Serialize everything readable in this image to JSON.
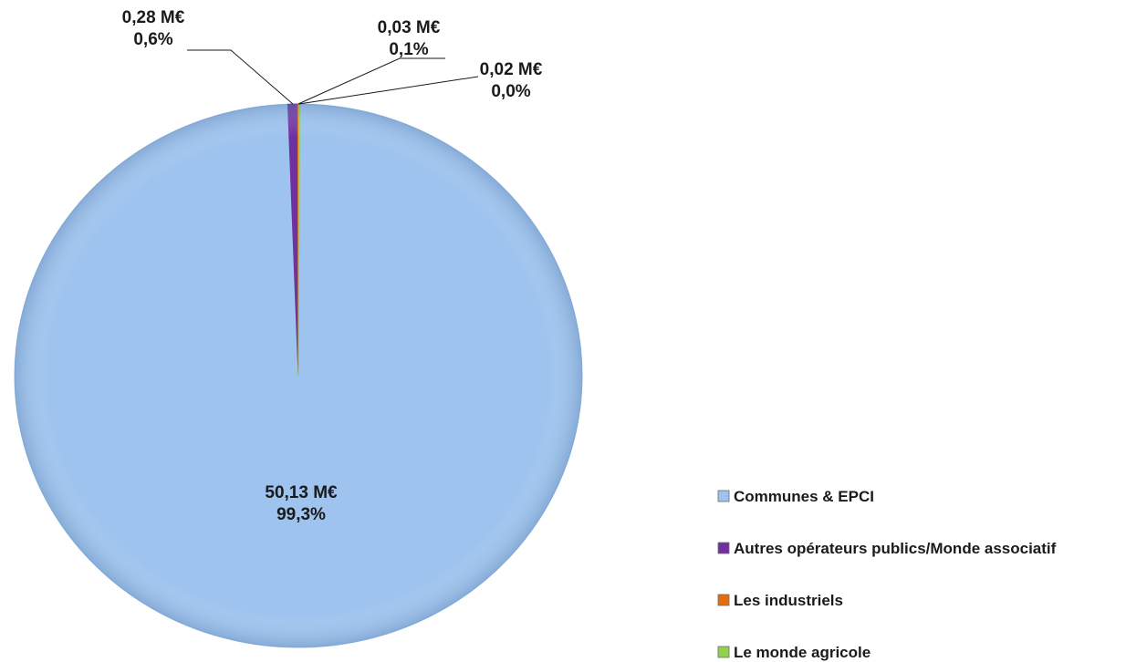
{
  "chart_data": {
    "type": "pie",
    "title": "",
    "legend_position": "bottom-right",
    "slices": [
      {
        "name": "Communes & EPCI",
        "value": 50.13,
        "value_label": "50,13 M€",
        "percent_label": "99,3%",
        "color": "#9dc3ee"
      },
      {
        "name": "Autres opérateurs publics/Monde associatif",
        "value": 0.28,
        "value_label": "0,28 M€",
        "percent_label": "0,6%",
        "color": "#7030a0"
      },
      {
        "name": "Les industriels",
        "value": 0.03,
        "value_label": "0,03 M€",
        "percent_label": "0,1%",
        "color": "#e46c0a"
      },
      {
        "name": "Le monde agricole",
        "value": 0.02,
        "value_label": "0,02 M€",
        "percent_label": "0,0%",
        "color": "#92d050"
      }
    ]
  }
}
